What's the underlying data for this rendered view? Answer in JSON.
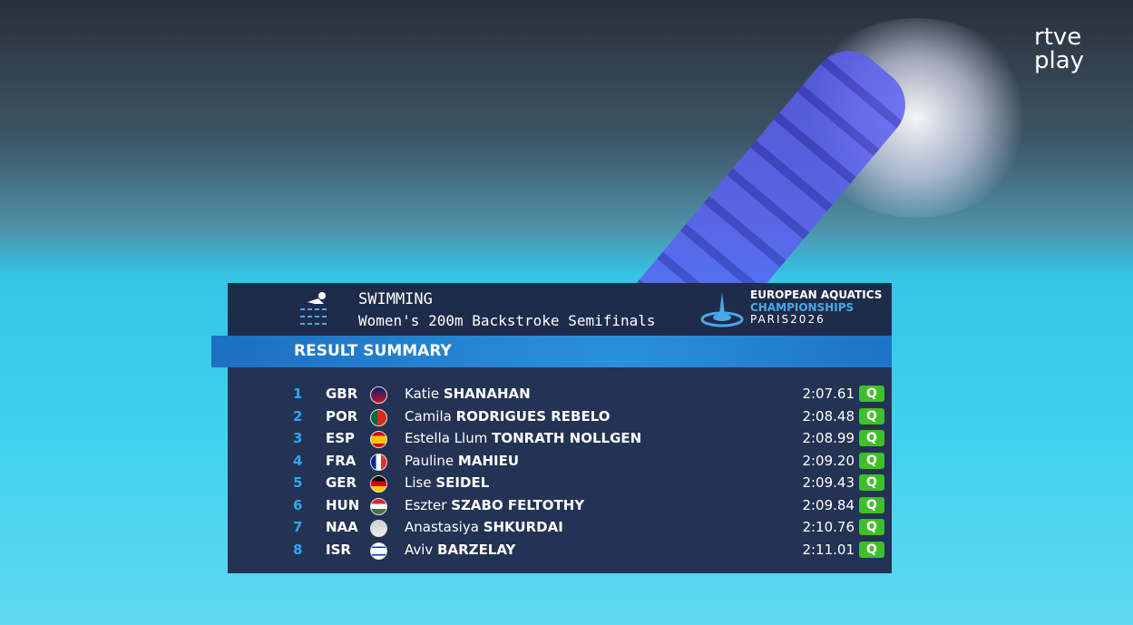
{
  "broadcaster": {
    "line1": "rtve",
    "line2": "play"
  },
  "header": {
    "sport": "SWIMMING",
    "event": "Women's 200m Backstroke Semifinals",
    "logo": {
      "line1": "EUROPEAN AQUATICS",
      "line2": "CHAMPIONSHIPS",
      "line3": "PARIS2026"
    }
  },
  "section_title": "RESULT SUMMARY",
  "results": [
    {
      "rank": "1",
      "country": "GBR",
      "first_name": "Katie",
      "last_name": "SHANAHAN",
      "time": "2:07.61",
      "status": "Q"
    },
    {
      "rank": "2",
      "country": "POR",
      "first_name": "Camila",
      "last_name": "RODRIGUES REBELO",
      "time": "2:08.48",
      "status": "Q"
    },
    {
      "rank": "3",
      "country": "ESP",
      "first_name": "Estella Llum",
      "last_name": "TONRATH NOLLGEN",
      "time": "2:08.99",
      "status": "Q"
    },
    {
      "rank": "4",
      "country": "FRA",
      "first_name": "Pauline",
      "last_name": "MAHIEU",
      "time": "2:09.20",
      "status": "Q"
    },
    {
      "rank": "5",
      "country": "GER",
      "first_name": "Lise",
      "last_name": "SEIDEL",
      "time": "2:09.43",
      "status": "Q"
    },
    {
      "rank": "6",
      "country": "HUN",
      "first_name": "Eszter",
      "last_name": "SZABO FELTOTHY",
      "time": "2:09.84",
      "status": "Q"
    },
    {
      "rank": "7",
      "country": "NAA",
      "first_name": "Anastasiya",
      "last_name": "SHKURDAI",
      "time": "2:10.76",
      "status": "Q"
    },
    {
      "rank": "8",
      "country": "ISR",
      "first_name": "Aviv",
      "last_name": "BARZELAY",
      "time": "2:11.01",
      "status": "Q"
    }
  ]
}
